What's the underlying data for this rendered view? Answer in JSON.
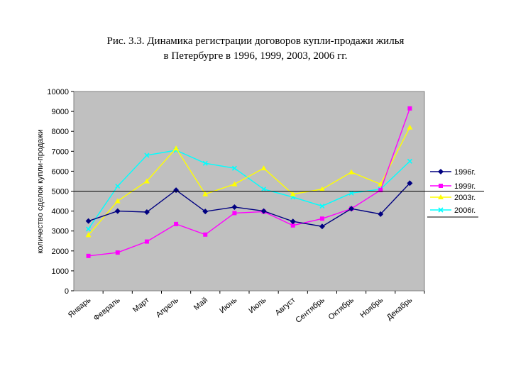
{
  "caption": {
    "line1": "Рис. 3.3. Динамика регистрации договоров купли-продажи жилья",
    "line2": "в Петербурге в 1996, 1999, 2003, 2006 гг."
  },
  "chart_data": {
    "type": "line",
    "title": "Рис. 3.3. Динамика регистрации договоров купли-продажи жилья в Петербурге в 1996, 1999, 2003, 2006 гг.",
    "xlabel": "",
    "ylabel": "количество сделок купли-продажи",
    "ylim": [
      0,
      10000
    ],
    "yticks": [
      0,
      1000,
      2000,
      3000,
      4000,
      5000,
      6000,
      7000,
      8000,
      9000,
      10000
    ],
    "grid": false,
    "reference_line": 5000,
    "legend_position": "right",
    "plot_background": "#c0c0c0",
    "categories": [
      "Январь",
      "Февраль",
      "Март",
      "Апрель",
      "Май",
      "Июнь",
      "Июль",
      "Август",
      "Сентябрь",
      "Октябрь",
      "Ноябрь",
      "Декабрь"
    ],
    "series": [
      {
        "name": "1996г.",
        "color": "#000080",
        "marker": "diamond",
        "values": [
          3500,
          4000,
          3950,
          5050,
          3980,
          4200,
          4000,
          3480,
          3230,
          4120,
          3850,
          5400
        ]
      },
      {
        "name": "1999г.",
        "color": "#ff00ff",
        "marker": "square",
        "values": [
          1750,
          1920,
          2470,
          3350,
          2820,
          3900,
          3970,
          3280,
          3620,
          4120,
          5050,
          9150
        ]
      },
      {
        "name": "2003г.",
        "color": "#ffff00",
        "marker": "triangle",
        "values": [
          2800,
          4500,
          5500,
          7150,
          4850,
          5350,
          6150,
          4850,
          5100,
          5950,
          5350,
          8200
        ]
      },
      {
        "name": "2006г.",
        "color": "#00ffff",
        "marker": "x",
        "values": [
          3100,
          5250,
          6800,
          7050,
          6400,
          6150,
          5100,
          4700,
          4250,
          4900,
          5100,
          6500
        ]
      }
    ]
  }
}
